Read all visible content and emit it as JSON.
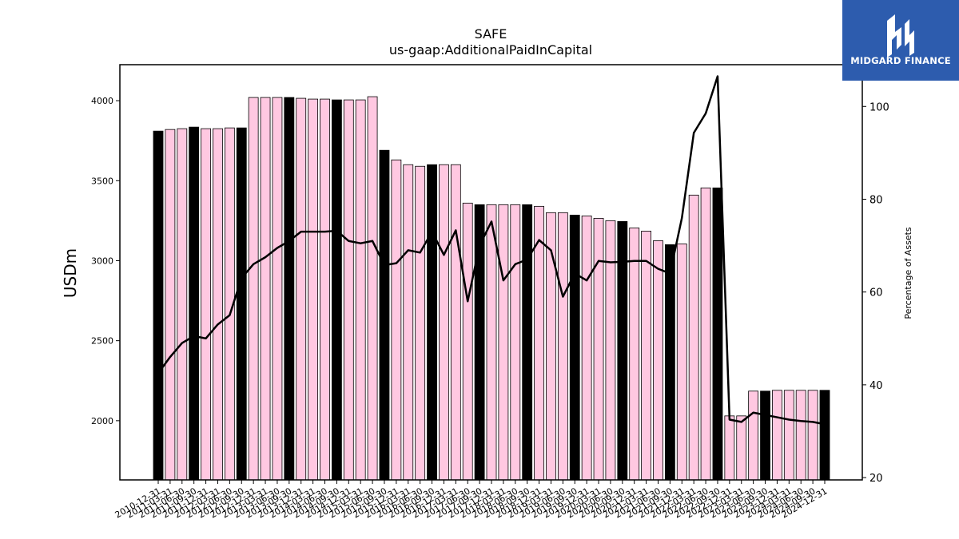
{
  "logo": {
    "text": "MIDGARD FINANCE",
    "color": "#2d5cae"
  },
  "chart_data": {
    "type": "bar",
    "title": "SAFE",
    "subtitle": "us-gaap:AdditionalPaidInCapital",
    "ylabel": "USDm",
    "ylabel_right": "Percentage of Assets",
    "ylim": [
      1630,
      4225
    ],
    "yticks": [
      2000,
      2500,
      3000,
      3500,
      4000
    ],
    "ylim_right": [
      19.5,
      109
    ],
    "yticks_right": [
      20,
      40,
      60,
      80,
      100
    ],
    "colors": {
      "highlight_bar": "#000000",
      "bar": "#ffc8e1",
      "line": "#000000"
    },
    "categories": [
      "2010-12-31",
      "2011-03-31",
      "2011-06-30",
      "2011-09-30",
      "2011-12-31",
      "2012-03-31",
      "2012-06-30",
      "2012-09-30",
      "2012-12-31",
      "2013-03-31",
      "2013-06-30",
      "2013-09-30",
      "2013-12-31",
      "2014-03-31",
      "2014-06-30",
      "2014-09-30",
      "2014-12-31",
      "2015-03-31",
      "2015-06-30",
      "2015-09-30",
      "2015-12-31",
      "2016-03-31",
      "2016-06-30",
      "2016-09-30",
      "2016-12-31",
      "2017-03-31",
      "2017-06-30",
      "2017-09-30",
      "2017-12-31",
      "2018-03-31",
      "2018-06-30",
      "2018-09-30",
      "2018-12-31",
      "2019-03-31",
      "2019-06-30",
      "2019-09-30",
      "2019-12-31",
      "2020-03-31",
      "2020-06-30",
      "2020-09-30",
      "2020-12-31",
      "2021-03-31",
      "2021-06-30",
      "2021-09-30",
      "2021-12-31",
      "2022-03-31",
      "2022-06-30",
      "2022-09-30",
      "2022-12-31",
      "2023-03-31",
      "2023-06-30",
      "2023-09-30",
      "2023-12-31",
      "2024-03-31",
      "2024-06-30",
      "2024-09-30",
      "2024-12-31"
    ],
    "series": [
      {
        "type": "bar",
        "values": [
          3810,
          3820,
          3825,
          3835,
          3825,
          3825,
          3830,
          3830,
          4020,
          4020,
          4020,
          4020,
          4015,
          4010,
          4010,
          4005,
          4005,
          4005,
          4025,
          3690,
          3630,
          3600,
          3590,
          3600,
          3600,
          3600,
          3360,
          3350,
          3350,
          3350,
          3350,
          3350,
          3340,
          3300,
          3300,
          3285,
          3280,
          3265,
          3250,
          3245,
          3205,
          3185,
          3125,
          3100,
          3105,
          3410,
          3455,
          3455,
          2030,
          2030,
          2185,
          2185,
          2190,
          2190,
          2190,
          2190,
          2190
        ],
        "highlight": [
          true,
          false,
          false,
          true,
          false,
          false,
          false,
          true,
          false,
          false,
          false,
          true,
          false,
          false,
          false,
          true,
          false,
          false,
          false,
          true,
          false,
          false,
          false,
          true,
          false,
          false,
          false,
          true,
          false,
          false,
          false,
          true,
          false,
          false,
          false,
          true,
          false,
          false,
          false,
          true,
          false,
          false,
          false,
          true,
          false,
          false,
          false,
          true,
          false,
          false,
          false,
          true,
          false,
          false,
          false,
          false,
          true
        ]
      },
      {
        "type": "line",
        "axis": "right",
        "values": [
          42.5,
          46,
          49,
          50.5,
          50,
          53,
          55,
          63,
          66,
          67.5,
          69.5,
          71,
          73,
          73,
          73,
          73.2,
          71,
          70.5,
          71,
          65.8,
          66.2,
          69,
          68.5,
          73,
          68,
          73.3,
          58,
          70,
          75.2,
          62.5,
          66,
          67,
          71.2,
          69,
          59,
          64,
          62.5,
          66.7,
          66.4,
          66.5,
          66.7,
          66.7,
          65,
          64,
          76,
          94.3,
          98.5,
          106.5,
          32.5,
          32,
          34,
          33.5,
          33,
          32.5,
          32.2,
          32,
          31.5
        ]
      }
    ]
  }
}
